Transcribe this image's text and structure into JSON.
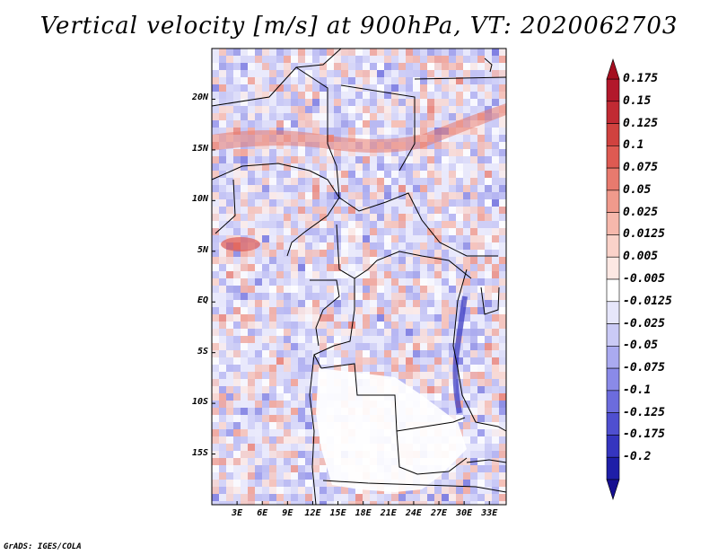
{
  "title": "Vertical velocity [m/s] at 900hPa, VT: 2020062703",
  "credit": "GrADS: IGES/COLA",
  "map": {
    "lat_range": [
      -20,
      25
    ],
    "lon_range": [
      0,
      35
    ],
    "lat_ticks": [
      {
        "value": 20,
        "label": "20N"
      },
      {
        "value": 15,
        "label": "15N"
      },
      {
        "value": 10,
        "label": "10N"
      },
      {
        "value": 5,
        "label": "5N"
      },
      {
        "value": 0,
        "label": "EQ"
      },
      {
        "value": -5,
        "label": "5S"
      },
      {
        "value": -10,
        "label": "10S"
      },
      {
        "value": -15,
        "label": "15S"
      }
    ],
    "lon_ticks": [
      {
        "value": 3,
        "label": "3E"
      },
      {
        "value": 6,
        "label": "6E"
      },
      {
        "value": 9,
        "label": "9E"
      },
      {
        "value": 12,
        "label": "12E"
      },
      {
        "value": 15,
        "label": "15E"
      },
      {
        "value": 18,
        "label": "18E"
      },
      {
        "value": 21,
        "label": "21E"
      },
      {
        "value": 24,
        "label": "24E"
      },
      {
        "value": 27,
        "label": "27E"
      },
      {
        "value": 30,
        "label": "30E"
      },
      {
        "value": 33,
        "label": "33E"
      }
    ]
  },
  "colorbar": {
    "levels": [
      {
        "label": "0.175",
        "color": "#b2182b"
      },
      {
        "label": "0.15",
        "color": "#c12a33"
      },
      {
        "label": "0.125",
        "color": "#d0423f"
      },
      {
        "label": "0.1",
        "color": "#de5a52"
      },
      {
        "label": "0.075",
        "color": "#e87a6e"
      },
      {
        "label": "0.05",
        "color": "#f09a8c"
      },
      {
        "label": "0.025",
        "color": "#f6b8ac"
      },
      {
        "label": "0.0125",
        "color": "#fad2c9"
      },
      {
        "label": "0.005",
        "color": "#fde8e3"
      },
      {
        "label": "-0.005",
        "color": "#ffffff"
      },
      {
        "label": "-0.0125",
        "color": "#e6e6fb"
      },
      {
        "label": "-0.025",
        "color": "#cacaf6"
      },
      {
        "label": "-0.05",
        "color": "#aaaaf0"
      },
      {
        "label": "-0.075",
        "color": "#8a8ae8"
      },
      {
        "label": "-0.1",
        "color": "#6c6cdd"
      },
      {
        "label": "-0.125",
        "color": "#4f4fd0"
      },
      {
        "label": "-0.175",
        "color": "#3535bf"
      },
      {
        "label": "-0.2",
        "color": "#1e1ea8"
      }
    ],
    "top_arrow_color": "#a50f20",
    "bottom_arrow_color": "#160f90"
  }
}
